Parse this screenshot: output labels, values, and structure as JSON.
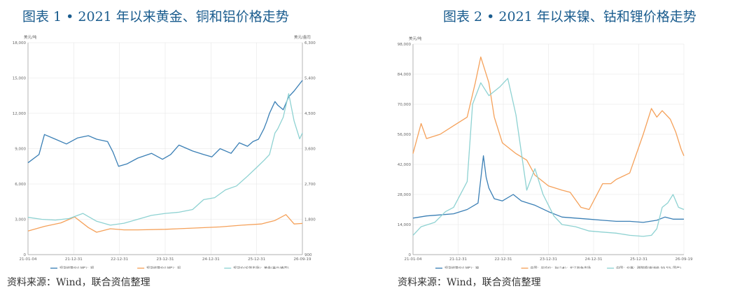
{
  "charts": [
    {
      "title": "图表 1 • 2021 年以来黄金、铜和铝价格走势",
      "source": "资料来源：Wind，联合资信整理"
    },
    {
      "title": "图表 2 • 2021 年以来镍、钴和锂价格走势",
      "source": "资料来源：Wind，联合资信整理"
    }
  ],
  "chart_data": [
    {
      "type": "line",
      "left_unit": "美元/吨",
      "right_unit": "美元/盎司",
      "y_left": {
        "min": 0,
        "max": 18000,
        "ticks": [
          "0",
          "3,000",
          "6,000",
          "9,000",
          "12,000",
          "15,000",
          "18,000"
        ]
      },
      "y_right": {
        "min": 900,
        "max": 6300,
        "ticks": [
          "900",
          "1,800",
          "2,700",
          "3,600",
          "4,500",
          "5,400",
          "6,300"
        ]
      },
      "x_ticks": [
        "21-01-04",
        "21-12-31",
        "22-12-31",
        "23-12-31",
        "24-12-31",
        "25-12-31",
        "26-09-19"
      ],
      "series": [
        {
          "name": "现货结算价(LME)：铜",
          "color": "#3a7fb5",
          "axis": "left",
          "x": [
            0,
            0.04,
            0.06,
            0.1,
            0.14,
            0.18,
            0.22,
            0.25,
            0.29,
            0.31,
            0.33,
            0.36,
            0.4,
            0.45,
            0.49,
            0.52,
            0.55,
            0.6,
            0.64,
            0.67,
            0.7,
            0.74,
            0.77,
            0.8,
            0.82,
            0.84,
            0.86,
            0.87,
            0.88,
            0.9,
            0.91,
            0.93,
            0.95,
            0.97,
            1.0
          ],
          "y": [
            7800,
            8500,
            10200,
            9800,
            9400,
            9900,
            10100,
            9800,
            9600,
            8700,
            7500,
            7700,
            8200,
            8600,
            8100,
            8500,
            9300,
            8800,
            8500,
            8300,
            9000,
            8600,
            9500,
            9200,
            9600,
            9800,
            10700,
            11300,
            12000,
            13000,
            12700,
            12300,
            13400,
            13900,
            14800
          ]
        },
        {
          "name": "现货结算价(LME)：铝",
          "color": "#f5a15a",
          "axis": "left",
          "x": [
            0,
            0.06,
            0.12,
            0.17,
            0.22,
            0.25,
            0.3,
            0.35,
            0.4,
            0.5,
            0.6,
            0.7,
            0.78,
            0.85,
            0.9,
            0.94,
            0.97,
            1.0
          ],
          "y": [
            2000,
            2400,
            2700,
            3200,
            2300,
            1900,
            2200,
            2100,
            2100,
            2150,
            2250,
            2350,
            2500,
            2600,
            2900,
            3400,
            2600,
            2650
          ]
        },
        {
          "name": "现货价(伦敦市场)：黄金(美元/盎司)",
          "color": "#8ed2d2",
          "axis": "right",
          "x": [
            0,
            0.05,
            0.1,
            0.15,
            0.2,
            0.25,
            0.3,
            0.35,
            0.4,
            0.45,
            0.5,
            0.55,
            0.6,
            0.64,
            0.68,
            0.72,
            0.76,
            0.8,
            0.83,
            0.86,
            0.88,
            0.9,
            0.91,
            0.93,
            0.95,
            0.97,
            0.99,
            1.0
          ],
          "y": [
            1850,
            1800,
            1780,
            1820,
            1950,
            1750,
            1650,
            1700,
            1800,
            1900,
            1950,
            1980,
            2050,
            2300,
            2350,
            2550,
            2650,
            2900,
            3100,
            3300,
            3450,
            4000,
            4100,
            4400,
            5000,
            4300,
            3850,
            4000
          ]
        }
      ]
    },
    {
      "type": "line",
      "left_unit": "美元/吨",
      "y_left": {
        "min": 0,
        "max": 98000,
        "ticks": [
          "0",
          "14,000",
          "28,000",
          "42,000",
          "56,000",
          "70,000",
          "84,000",
          "98,000"
        ]
      },
      "x_ticks": [
        "21-01-04",
        "21-12-31",
        "22-12-31",
        "23-12-31",
        "24-12-31",
        "25-12-31",
        "26-09-19"
      ],
      "series": [
        {
          "name": "现货结算价(LME)：镍",
          "color": "#3a7fb5",
          "axis": "left",
          "x": [
            0,
            0.05,
            0.1,
            0.15,
            0.2,
            0.24,
            0.26,
            0.27,
            0.28,
            0.3,
            0.33,
            0.37,
            0.4,
            0.45,
            0.5,
            0.55,
            0.6,
            0.65,
            0.7,
            0.75,
            0.8,
            0.85,
            0.9,
            0.93,
            0.96,
            1.0
          ],
          "y": [
            17000,
            18000,
            18500,
            19000,
            21000,
            24000,
            46000,
            36000,
            31000,
            26000,
            25000,
            28000,
            25000,
            23000,
            20000,
            17500,
            17000,
            16500,
            16000,
            15500,
            15500,
            15000,
            16000,
            17500,
            16500,
            16500
          ]
        },
        {
          "name": "中国：平均价：钴(1#)：长江有色市场",
          "color": "#f5a15a",
          "axis": "left",
          "x": [
            0,
            0.03,
            0.05,
            0.1,
            0.15,
            0.2,
            0.23,
            0.25,
            0.28,
            0.3,
            0.33,
            0.38,
            0.42,
            0.45,
            0.5,
            0.55,
            0.58,
            0.62,
            0.65,
            0.7,
            0.73,
            0.75,
            0.8,
            0.85,
            0.88,
            0.9,
            0.92,
            0.95,
            0.97,
            0.99,
            1.0
          ],
          "y": [
            47000,
            61000,
            54000,
            56000,
            60000,
            64000,
            80000,
            92000,
            80000,
            64000,
            52000,
            47000,
            44000,
            37000,
            32000,
            30000,
            29000,
            22000,
            21000,
            33000,
            33000,
            35000,
            38000,
            56000,
            68000,
            64000,
            67000,
            63000,
            57000,
            49000,
            46000
          ]
        },
        {
          "name": "中国：价格：碳酸锂(电池级,99.5%,国产)",
          "color": "#8ed2d2",
          "axis": "left",
          "x": [
            0,
            0.03,
            0.08,
            0.12,
            0.15,
            0.2,
            0.22,
            0.25,
            0.28,
            0.32,
            0.35,
            0.38,
            0.42,
            0.45,
            0.48,
            0.52,
            0.55,
            0.6,
            0.65,
            0.7,
            0.75,
            0.8,
            0.85,
            0.88,
            0.9,
            0.92,
            0.94,
            0.96,
            0.98,
            1.0
          ],
          "y": [
            9000,
            13000,
            15000,
            20000,
            22000,
            34000,
            70000,
            80000,
            74000,
            78000,
            82000,
            65000,
            30000,
            40000,
            28000,
            18000,
            14000,
            13000,
            11000,
            10500,
            10000,
            9000,
            8500,
            9000,
            12000,
            22000,
            24000,
            28000,
            22000,
            21000
          ]
        }
      ]
    }
  ]
}
